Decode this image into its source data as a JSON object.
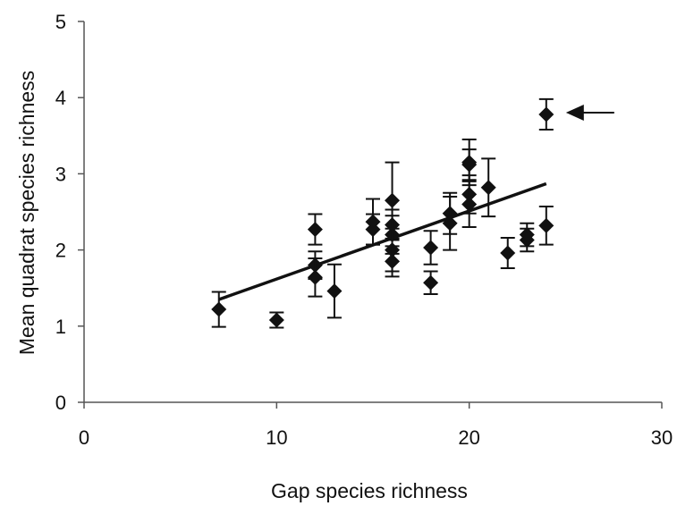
{
  "chart_data": {
    "type": "scatter",
    "xlabel": "Gap species richness",
    "ylabel": "Mean quadrat species richness",
    "xlim": [
      0,
      30
    ],
    "ylim": [
      0,
      5
    ],
    "xticks": [
      0,
      10,
      20,
      30
    ],
    "yticks": [
      0,
      1,
      2,
      3,
      4,
      5
    ],
    "grid": false,
    "points": [
      {
        "x": 7,
        "y": 1.22,
        "err": 0.23
      },
      {
        "x": 10,
        "y": 1.08,
        "err": 0.1
      },
      {
        "x": 12,
        "y": 2.27,
        "err": 0.2
      },
      {
        "x": 12,
        "y": 1.8,
        "err": 0.18
      },
      {
        "x": 12,
        "y": 1.64,
        "err": 0.25
      },
      {
        "x": 13,
        "y": 1.46,
        "err": 0.35
      },
      {
        "x": 15,
        "y": 2.37,
        "err": 0.3
      },
      {
        "x": 15,
        "y": 2.27,
        "err": 0.2
      },
      {
        "x": 16,
        "y": 2.65,
        "err": 0.5
      },
      {
        "x": 16,
        "y": 2.33,
        "err": 0.2
      },
      {
        "x": 16,
        "y": 2.2,
        "err": 0.25
      },
      {
        "x": 16,
        "y": 2.0,
        "err": 0.28
      },
      {
        "x": 16,
        "y": 1.85,
        "err": 0.2
      },
      {
        "x": 18,
        "y": 2.03,
        "err": 0.22
      },
      {
        "x": 18,
        "y": 1.57,
        "err": 0.15
      },
      {
        "x": 19,
        "y": 2.48,
        "err": 0.27
      },
      {
        "x": 19,
        "y": 2.35,
        "err": 0.35
      },
      {
        "x": 20,
        "y": 3.15,
        "err": 0.3
      },
      {
        "x": 20,
        "y": 3.12,
        "err": 0.2
      },
      {
        "x": 20,
        "y": 2.73,
        "err": 0.25
      },
      {
        "x": 20,
        "y": 2.6,
        "err": 0.3
      },
      {
        "x": 21,
        "y": 2.82,
        "err": 0.38
      },
      {
        "x": 22,
        "y": 1.96,
        "err": 0.2
      },
      {
        "x": 23,
        "y": 2.2,
        "err": 0.15
      },
      {
        "x": 23,
        "y": 2.13,
        "err": 0.15
      },
      {
        "x": 24,
        "y": 3.78,
        "err": 0.2
      },
      {
        "x": 24,
        "y": 2.32,
        "err": 0.25
      }
    ],
    "trendline": {
      "x": [
        7,
        24
      ],
      "y": [
        1.35,
        2.87
      ]
    },
    "annotations": [
      {
        "type": "arrow",
        "target_x": 24,
        "target_y": 3.78
      }
    ],
    "colors": {
      "marker": "#111111",
      "line": "#111111",
      "axis": "#555555"
    }
  }
}
